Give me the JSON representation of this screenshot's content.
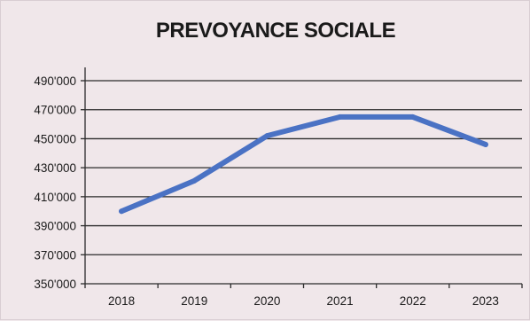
{
  "chart_data": {
    "type": "line",
    "title": "PREVOYANCE SOCIALE",
    "xlabel": "",
    "ylabel": "",
    "categories": [
      "2018",
      "2019",
      "2020",
      "2021",
      "2022",
      "2023"
    ],
    "series": [
      {
        "values": [
          400000,
          421000,
          452000,
          465000,
          465000,
          446000
        ]
      }
    ],
    "ylim": [
      350000,
      490000
    ],
    "yticks": [
      350000,
      370000,
      390000,
      410000,
      430000,
      450000,
      470000,
      490000
    ],
    "ytick_labels": [
      "350'000",
      "370'000",
      "390'000",
      "410'000",
      "430'000",
      "450'000",
      "470'000",
      "490'000"
    ],
    "grid": true,
    "legend": "none",
    "line_color": "#4a72c4"
  }
}
